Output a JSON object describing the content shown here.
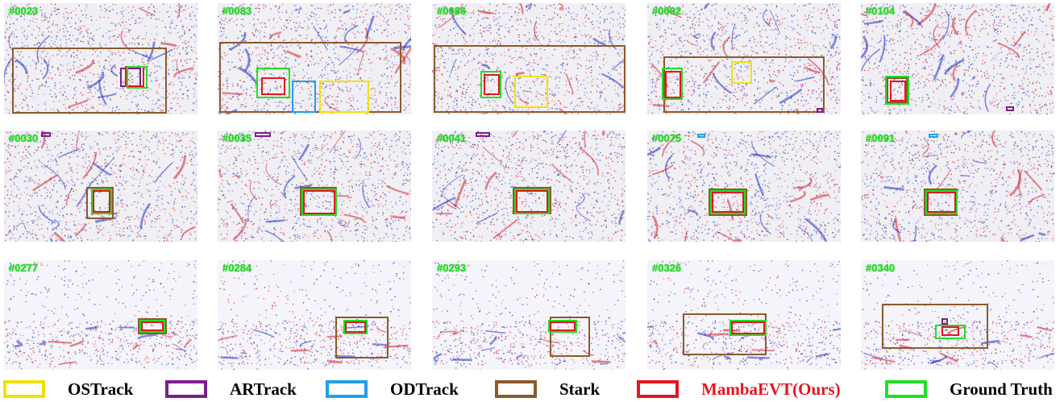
{
  "colors": {
    "ostrack": "#f2e200",
    "artrack": "#7a1f8c",
    "odtrack": "#1fa0e8",
    "stark": "#8b5a2b",
    "mambaevt": "#e8141e",
    "ground_truth": "#22e022",
    "event_red": "#d8202a",
    "event_blue": "#2030c8"
  },
  "rows": [
    {
      "frames": [
        "#0023",
        "#0083",
        "#0086",
        "#0092",
        "#0104"
      ]
    },
    {
      "frames": [
        "#0030",
        "#0035",
        "#0041",
        "#0075",
        "#0091"
      ]
    },
    {
      "frames": [
        "#0277",
        "#0284",
        "#0293",
        "#0326",
        "#0340"
      ]
    }
  ],
  "legend": [
    {
      "label": "OSTrack",
      "color_key": "ostrack",
      "text_color": "#000000"
    },
    {
      "label": "ARTrack",
      "color_key": "artrack",
      "text_color": "#000000"
    },
    {
      "label": "ODTrack",
      "color_key": "odtrack",
      "text_color": "#000000"
    },
    {
      "label": "Stark",
      "color_key": "stark",
      "text_color": "#000000"
    },
    {
      "label": "MambaEVT(Ours)",
      "color_key": "mambaevt",
      "text_color": "#e8141e"
    },
    {
      "label": "Ground Truth",
      "color_key": "ground_truth",
      "text_color": "#000000"
    }
  ]
}
